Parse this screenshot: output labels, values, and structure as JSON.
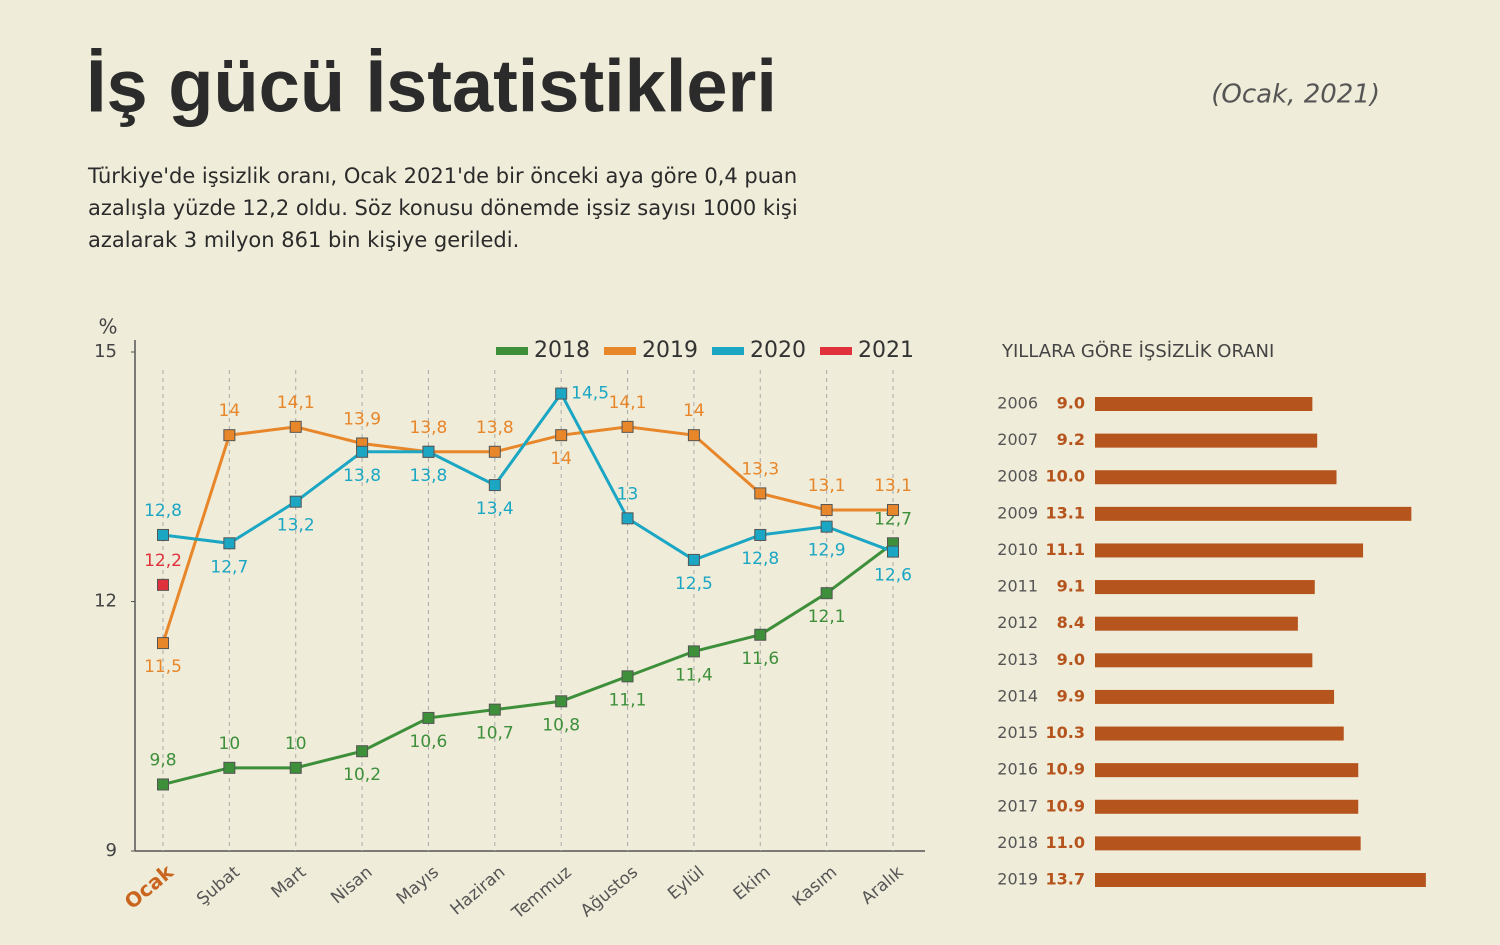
{
  "title": "İş gücü İstatistikleri",
  "date": "(Ocak, 2021)",
  "subtitle": [
    "Türkiye'de işsizlik oranı, Ocak 2021'de bir önceki aya göre 0,4 puan",
    "azalışla yüzde 12,2 oldu. Söz konusu dönemde işsiz sayısı 1000 kişi",
    "azalarak 3 milyon 861 bin kişiye geriledi."
  ],
  "chart_data": [
    {
      "type": "line",
      "y_label": "%",
      "categories": [
        "Ocak",
        "Şubat",
        "Mart",
        "Nisan",
        "Mayıs",
        "Haziran",
        "Temmuz",
        "Ağustos",
        "Eylül",
        "Ekim",
        "Kasım",
        "Aralık"
      ],
      "ylim": [
        9,
        15
      ],
      "yticks": [
        9,
        12,
        15
      ],
      "series": [
        {
          "name": "2018",
          "color": "#3d8f3a",
          "values": [
            9.8,
            10,
            10,
            10.2,
            10.6,
            10.7,
            10.8,
            11.1,
            11.4,
            11.6,
            12.1,
            12.7
          ],
          "value_labels": [
            "9,8",
            "10",
            "10",
            "10,2",
            "10,6",
            "10,7",
            "10,8",
            "11,1",
            "11,4",
            "11,6",
            "12,1",
            "12,7"
          ]
        },
        {
          "name": "2019",
          "color": "#e8862a",
          "values": [
            11.5,
            14,
            14.1,
            13.9,
            13.8,
            13.8,
            14,
            14.1,
            14,
            13.3,
            13.1,
            13.1
          ],
          "value_labels": [
            "11,5",
            "14",
            "14,1",
            "13,9",
            "13,8",
            "13,8",
            "14",
            "14,1",
            "14",
            "13,3",
            "13,1",
            "13,1"
          ]
        },
        {
          "name": "2020",
          "color": "#1ba6c4",
          "values": [
            12.8,
            12.7,
            13.2,
            13.8,
            13.8,
            13.4,
            14.5,
            13,
            12.5,
            12.8,
            12.9,
            12.6
          ],
          "value_labels": [
            "12,8",
            "12,7",
            "13,2",
            "13,8",
            "13,8",
            "13,4",
            "14,5",
            "13",
            "12,5",
            "12,8",
            "12,9",
            "12,6"
          ]
        },
        {
          "name": "2021",
          "color": "#e0323c",
          "values": [
            12.2,
            null,
            null,
            null,
            null,
            null,
            null,
            null,
            null,
            null,
            null,
            null
          ],
          "value_labels": [
            "12,2",
            null,
            null,
            null,
            null,
            null,
            null,
            null,
            null,
            null,
            null,
            null
          ]
        }
      ]
    },
    {
      "type": "hbar",
      "title": "YILLARA GÖRE İŞSİZLİK ORANI",
      "color": "#b5541c",
      "categories": [
        "2006",
        "2007",
        "2008",
        "2009",
        "2010",
        "2011",
        "2012",
        "2013",
        "2014",
        "2015",
        "2016",
        "2017",
        "2018",
        "2019"
      ],
      "values": [
        9.0,
        9.2,
        10.0,
        13.1,
        11.1,
        9.1,
        8.4,
        9.0,
        9.9,
        10.3,
        10.9,
        10.9,
        11.0,
        13.7
      ],
      "value_labels": [
        "9.0",
        "9.2",
        "10.0",
        "13.1",
        "11.1",
        "9.1",
        "8.4",
        "9.0",
        "9.9",
        "10.3",
        "10.9",
        "10.9",
        "11.0",
        "13.7"
      ]
    }
  ]
}
